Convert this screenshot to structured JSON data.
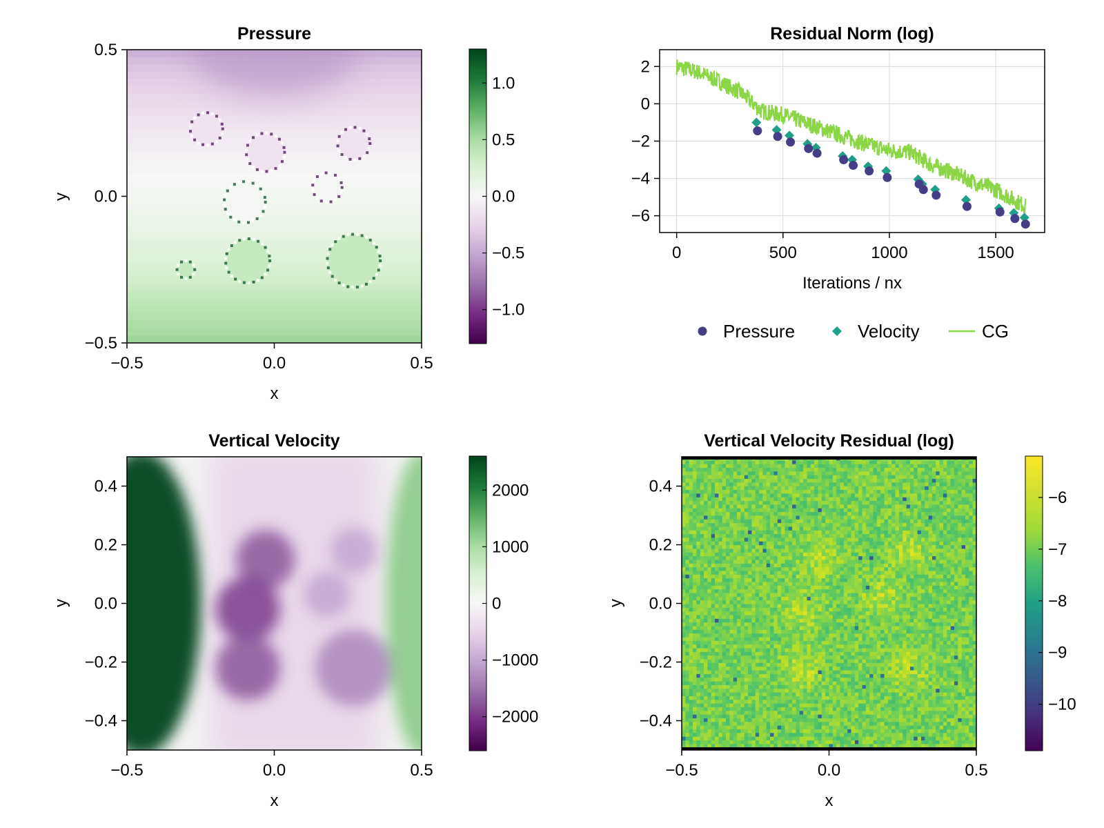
{
  "chart_data": [
    {
      "type": "heatmap",
      "title": "Pressure",
      "xlabel": "x",
      "ylabel": "y",
      "xlim": [
        -0.5,
        0.5
      ],
      "ylim": [
        -0.5,
        0.5
      ],
      "xticks": [
        -0.5,
        0.0,
        0.5
      ],
      "xtick_labels": [
        "−0.5",
        "0.0",
        "0.5"
      ],
      "yticks": [
        -0.5,
        0.0,
        0.5
      ],
      "ytick_labels": [
        "−0.5",
        "0.0",
        "0.5"
      ],
      "colormap": "PRGn",
      "colorbar": {
        "range": [
          -1.3,
          1.3
        ],
        "ticks": [
          -1.0,
          -0.5,
          0.0,
          0.5,
          1.0
        ],
        "tick_labels": [
          "−1.0",
          "−0.5",
          "0.0",
          "0.5",
          "1.0"
        ]
      },
      "field": {
        "description_values": "pressure field: negative (purple) in upper half, positive (green) in lower half",
        "top_value": -0.45,
        "bottom_value": 0.55
      },
      "inclusions": [
        {
          "x": -0.23,
          "y": 0.23,
          "r": 0.055
        },
        {
          "x": -0.03,
          "y": 0.15,
          "r": 0.065
        },
        {
          "x": 0.27,
          "y": 0.18,
          "r": 0.055
        },
        {
          "x": -0.1,
          "y": -0.02,
          "r": 0.07
        },
        {
          "x": 0.18,
          "y": 0.03,
          "r": 0.05
        },
        {
          "x": -0.09,
          "y": -0.22,
          "r": 0.075
        },
        {
          "x": 0.27,
          "y": -0.22,
          "r": 0.09
        },
        {
          "x": -0.3,
          "y": -0.25,
          "r": 0.03
        }
      ]
    },
    {
      "type": "line",
      "title": "Residual Norm (log)",
      "xlabel": "Iterations / nx",
      "ylabel": "",
      "xlim": [
        -80,
        1730
      ],
      "ylim": [
        -6.9,
        2.9
      ],
      "grid": true,
      "xticks": [
        0,
        500,
        1000,
        1500
      ],
      "xtick_labels": [
        "0",
        "500",
        "1000",
        "1500"
      ],
      "yticks": [
        -6,
        -4,
        -2,
        0,
        2
      ],
      "ytick_labels": [
        "−6",
        "−4",
        "−2",
        "0",
        "2"
      ],
      "legend": {
        "placement": "below",
        "entries": [
          "Pressure",
          "Velocity",
          "CG"
        ]
      },
      "series": [
        {
          "name": "Pressure",
          "marker": "circle",
          "color": "#433e85",
          "x": [
            380,
            475,
            535,
            620,
            660,
            785,
            830,
            905,
            990,
            1140,
            1160,
            1220,
            1365,
            1520,
            1590,
            1640
          ],
          "y": [
            -1.45,
            -1.75,
            -2.05,
            -2.4,
            -2.65,
            -3.0,
            -3.3,
            -3.6,
            -3.95,
            -4.3,
            -4.6,
            -4.9,
            -5.5,
            -5.8,
            -6.15,
            -6.45
          ]
        },
        {
          "name": "Velocity",
          "marker": "diamond",
          "color": "#1f9e89",
          "x": [
            375,
            470,
            530,
            615,
            655,
            780,
            825,
            900,
            985,
            1135,
            1155,
            1215,
            1360,
            1515,
            1585,
            1635
          ],
          "y": [
            -1.0,
            -1.4,
            -1.7,
            -2.15,
            -2.35,
            -2.8,
            -3.0,
            -3.35,
            -3.6,
            -4.05,
            -4.3,
            -4.6,
            -5.15,
            -5.6,
            -5.85,
            -6.1
          ]
        },
        {
          "name": "CG",
          "color": "#8bd646",
          "x": [
            0,
            100,
            200,
            300,
            400,
            500,
            600,
            700,
            800,
            900,
            1000,
            1100,
            1200,
            1300,
            1400,
            1500,
            1640
          ],
          "y": [
            2.0,
            1.7,
            1.2,
            0.6,
            -0.4,
            -0.6,
            -1.0,
            -1.4,
            -1.8,
            -2.2,
            -2.5,
            -2.6,
            -3.3,
            -3.7,
            -4.2,
            -4.6,
            -5.5
          ]
        }
      ]
    },
    {
      "type": "heatmap",
      "title": "Vertical Velocity",
      "xlabel": "x",
      "ylabel": "y",
      "xlim": [
        -0.5,
        0.5
      ],
      "ylim": [
        -0.5,
        0.5
      ],
      "xticks": [
        -0.5,
        0.0,
        0.5
      ],
      "xtick_labels": [
        "−0.5",
        "0.0",
        "0.5"
      ],
      "yticks": [
        -0.4,
        -0.2,
        0.0,
        0.2,
        0.4
      ],
      "ytick_labels": [
        "−0.4",
        "−0.2",
        "0.0",
        "0.2",
        "0.4"
      ],
      "colormap": "PRGn",
      "colorbar": {
        "range": [
          -2600,
          2600
        ],
        "ticks": [
          -2000,
          -1000,
          0,
          1000,
          2000
        ],
        "tick_labels": [
          "−2000",
          "−1000",
          "0",
          "1000",
          "2000"
        ]
      },
      "features": [
        {
          "kind": "band",
          "x": -0.45,
          "width": 0.2,
          "value": 2600
        },
        {
          "kind": "band",
          "x": 0.5,
          "width": 0.12,
          "value": 1200
        },
        {
          "kind": "blob",
          "x": -0.03,
          "y": 0.15,
          "r": 0.1,
          "value": -1700
        },
        {
          "kind": "blob",
          "x": -0.09,
          "y": -0.02,
          "r": 0.11,
          "value": -1900
        },
        {
          "kind": "blob",
          "x": -0.09,
          "y": -0.22,
          "r": 0.11,
          "value": -1700
        },
        {
          "kind": "blob",
          "x": 0.27,
          "y": 0.18,
          "r": 0.08,
          "value": -1000
        },
        {
          "kind": "blob",
          "x": 0.18,
          "y": 0.03,
          "r": 0.08,
          "value": -1000
        },
        {
          "kind": "blob",
          "x": 0.27,
          "y": -0.22,
          "r": 0.13,
          "value": -1300
        }
      ]
    },
    {
      "type": "heatmap",
      "title": "Vertical Velocity Residual (log)",
      "xlabel": "x",
      "ylabel": "y",
      "xlim": [
        -0.5,
        0.5
      ],
      "ylim": [
        -0.5,
        0.5
      ],
      "xticks": [
        -0.5,
        0.0,
        0.5
      ],
      "xtick_labels": [
        "−0.5",
        "0.0",
        "0.5"
      ],
      "yticks": [
        -0.4,
        -0.2,
        0.0,
        0.2,
        0.4
      ],
      "ytick_labels": [
        "−0.4",
        "−0.2",
        "0.0",
        "0.2",
        "0.4"
      ],
      "colormap": "viridis",
      "colorbar": {
        "range": [
          -10.9,
          -5.2
        ],
        "ticks": [
          -10,
          -9,
          -8,
          -7,
          -6
        ],
        "tick_labels": [
          "−10",
          "−9",
          "−8",
          "−7",
          "−6"
        ]
      },
      "field": {
        "base_value": -6.4,
        "noise": 0.5,
        "elevated_value": -5.8
      },
      "elevated_regions": [
        {
          "x": -0.03,
          "y": 0.15
        },
        {
          "x": -0.09,
          "y": -0.02
        },
        {
          "x": -0.09,
          "y": -0.22
        },
        {
          "x": 0.27,
          "y": 0.18
        },
        {
          "x": 0.18,
          "y": 0.03
        },
        {
          "x": 0.27,
          "y": -0.22
        }
      ]
    }
  ]
}
